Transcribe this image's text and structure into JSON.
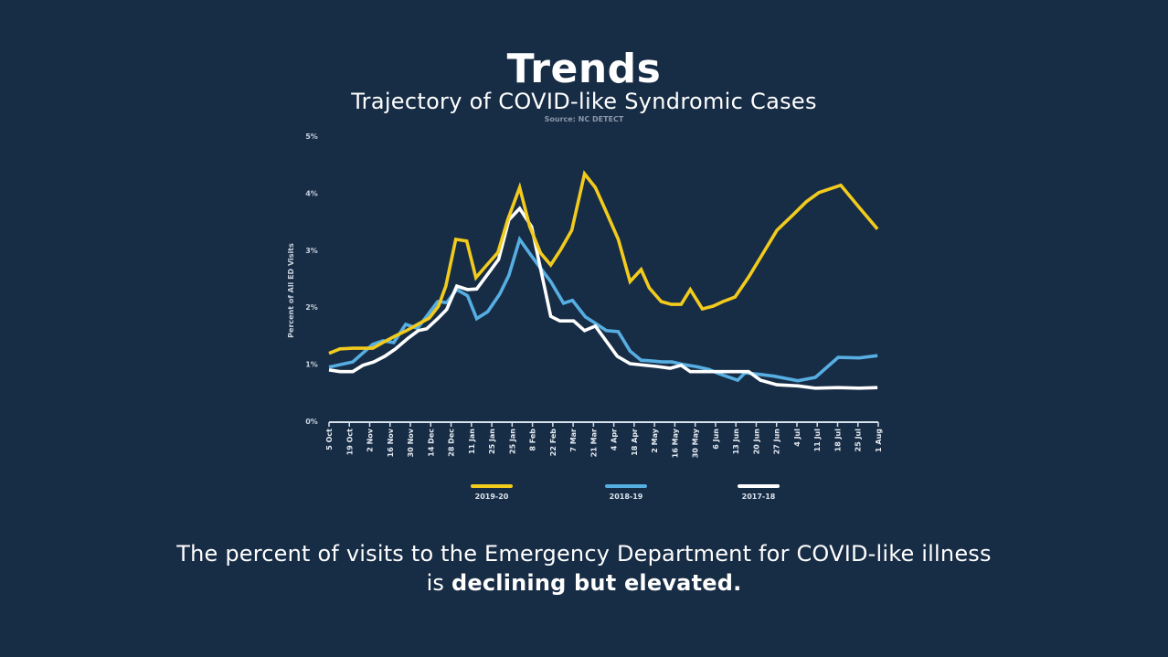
{
  "header": {
    "title": "Trends",
    "subtitle": "Trajectory of COVID-like Syndromic Cases",
    "source": "Source: NC DETECT"
  },
  "footer": {
    "text_prefix": "The percent of visits to the Emergency Department for COVID-like illness",
    "text_is": "is",
    "text_bold": "declining but elevated."
  },
  "colors": {
    "background": "#172c45",
    "series_2019_20": "#f2cb1d",
    "series_2018_19": "#56aee2",
    "series_2017_18": "#ffffff",
    "axis": "#d8e0ea"
  },
  "chart_data": {
    "type": "line",
    "title": "Trajectory of COVID-like Syndromic Cases",
    "xlabel": "",
    "ylabel": "Percent of All ED Visits",
    "ylim": [
      0,
      5
    ],
    "yticks": [
      "0%",
      "1%",
      "2%",
      "3%",
      "4%",
      "5%"
    ],
    "ytick_values": [
      0,
      1,
      2,
      3,
      4,
      5
    ],
    "xtick_labels": [
      "5 Oct",
      "19 Oct",
      "2 Nov",
      "16 Nov",
      "30 Nov",
      "14 Dec",
      "28 Dec",
      "11 Jan",
      "25 Jan",
      "25 Jan",
      "8 Feb",
      "22 Feb",
      "7 Mar",
      "21 Mar",
      "4 Apr",
      "18 Apr",
      "2 May",
      "16 May",
      "30 May",
      "6 Jun",
      "13 Jun",
      "20 Jun",
      "27 Jun",
      "4 Jul",
      "11 Jul",
      "18 Jul",
      "25 Jul",
      "1 Aug"
    ],
    "x_range": [
      0,
      27
    ],
    "grid": false,
    "legend_position": "bottom",
    "series": [
      {
        "name": "2019-20",
        "color": "#f2cb1d",
        "x": [
          0,
          0.54,
          1.17,
          2.15,
          2.69,
          3.23,
          3.81,
          4.26,
          4.93,
          5.38,
          5.74,
          6.23,
          6.77,
          7.22,
          7.76,
          8.3,
          8.79,
          9.37,
          9.87,
          10.4,
          10.9,
          11.39,
          11.93,
          12.56,
          13.09,
          13.63,
          14.22,
          14.8,
          15.34,
          15.74,
          16.33,
          16.82,
          17.31,
          17.76,
          18.35,
          18.88,
          19.37,
          19.96,
          20.63,
          21.26,
          22.02,
          22.78,
          23.46,
          24.08,
          25.16,
          26.06,
          26.96
        ],
        "values": [
          1.19,
          1.27,
          1.28,
          1.28,
          1.39,
          1.49,
          1.59,
          1.68,
          1.81,
          2.02,
          2.37,
          3.19,
          3.16,
          2.52,
          2.74,
          2.96,
          3.54,
          4.1,
          3.41,
          2.95,
          2.74,
          3.01,
          3.35,
          4.34,
          4.1,
          3.67,
          3.19,
          2.45,
          2.66,
          2.34,
          2.1,
          2.05,
          2.05,
          2.31,
          1.97,
          2.02,
          2.1,
          2.18,
          2.53,
          2.9,
          3.35,
          3.61,
          3.85,
          4.01,
          4.14,
          3.75,
          3.37
        ]
      },
      {
        "name": "2018-19",
        "color": "#56aee2",
        "x": [
          0,
          1.17,
          2.15,
          2.65,
          3.18,
          3.77,
          4.35,
          4.84,
          5.34,
          5.78,
          6.28,
          6.81,
          7.26,
          7.8,
          8.39,
          8.84,
          9.37,
          9.91,
          10.45,
          10.9,
          11.53,
          11.97,
          12.6,
          13.09,
          13.63,
          14.22,
          14.8,
          15.34,
          15.83,
          16.37,
          16.86,
          17.49,
          18.03,
          18.66,
          19.19,
          20.09,
          20.45,
          21.21,
          21.88,
          23.05,
          23.91,
          25.03,
          26.06,
          26.96
        ],
        "values": [
          0.95,
          1.04,
          1.35,
          1.41,
          1.38,
          1.7,
          1.63,
          1.86,
          2.1,
          2.08,
          2.31,
          2.2,
          1.8,
          1.92,
          2.23,
          2.56,
          3.19,
          2.92,
          2.66,
          2.45,
          2.07,
          2.12,
          1.83,
          1.72,
          1.59,
          1.57,
          1.23,
          1.07,
          1.06,
          1.04,
          1.04,
          0.99,
          0.96,
          0.91,
          0.83,
          0.72,
          0.85,
          0.82,
          0.79,
          0.71,
          0.77,
          1.12,
          1.11,
          1.15
        ]
      },
      {
        "name": "2017-18",
        "color": "#ffffff",
        "x": [
          0,
          0.54,
          1.17,
          1.66,
          2.2,
          2.74,
          3.27,
          3.9,
          4.39,
          4.8,
          5.34,
          5.78,
          6.28,
          6.81,
          7.26,
          7.76,
          8.34,
          8.84,
          9.37,
          9.96,
          10.9,
          11.35,
          12.02,
          12.56,
          13.09,
          14.17,
          14.8,
          16.14,
          16.77,
          17.31,
          17.76,
          18.88,
          20.18,
          20.63,
          21.21,
          22.02,
          23.05,
          23.91,
          25.03,
          26.06,
          26.96
        ],
        "values": [
          0.9,
          0.87,
          0.87,
          0.98,
          1.04,
          1.14,
          1.27,
          1.46,
          1.59,
          1.62,
          1.8,
          1.96,
          2.37,
          2.31,
          2.32,
          2.56,
          2.84,
          3.53,
          3.73,
          3.41,
          1.84,
          1.76,
          1.76,
          1.59,
          1.67,
          1.14,
          1.01,
          0.96,
          0.93,
          0.98,
          0.87,
          0.87,
          0.87,
          0.87,
          0.72,
          0.64,
          0.62,
          0.58,
          0.59,
          0.58,
          0.59
        ]
      }
    ]
  }
}
